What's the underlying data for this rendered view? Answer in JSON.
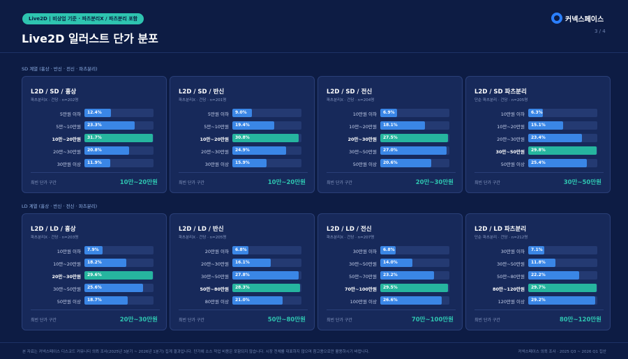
{
  "header": {
    "tag": "Live2D | 비상업 기준 · 파츠분리X / 파츠분리 포함",
    "title": "Live2D 일러스트 단가 분포",
    "logo_text": "커넥스페이스",
    "page": "3 / 4"
  },
  "sections": [
    {
      "label": "SD 계열 (흉상 · 반신 · 전신 · 파츠분리)"
    },
    {
      "label": "LD 계열 (흉상 · 반신 · 전신 · 파츠분리)"
    }
  ],
  "footer": {
    "note": "본 자료는 커넥스페이스 디스코드 커뮤니티 의뢰 조사(2025년 3분기 ~ 2026년 1분기) 집계 결과입니다. 단가에 소스 작업 비용은 포함되지 않습니다. 시장 전체를 대표하지 않으며 참고용으로만 활용하시기 바랍니다.",
    "source": "커넥스페이스 의뢰 조사 · 2025 Q3 ~ 2026 Q1 집산"
  },
  "colors": {
    "normal": "#3a86e6",
    "best": "#26b59f",
    "accent": "#2ec4b0"
  },
  "chart_data": [
    {
      "type": "bar",
      "title": "L2D / SD / 흉상",
      "subtitle": "파츠분리X · 건당 · n=202명",
      "categories": [
        "5만원 이하",
        "5만~10만원",
        "10만~20만원",
        "20만~30만원",
        "30만원 이상"
      ],
      "values": [
        12.4,
        23.3,
        31.7,
        20.8,
        11.9
      ],
      "labels": [
        "12.4%",
        "23.3%",
        "31.7%",
        "20.8%",
        "11.9%"
      ],
      "best_index": 2,
      "mode_label": "최빈 단가 구간",
      "mode_value": "10만~20만원",
      "xlim": [
        0,
        32
      ]
    },
    {
      "type": "bar",
      "title": "L2D / SD / 반신",
      "subtitle": "파츠분리X · 건당 · n=201명",
      "categories": [
        "5만원 이하",
        "5만~10만원",
        "10만~20만원",
        "20만~30만원",
        "30만원 이상"
      ],
      "values": [
        9.0,
        19.4,
        30.8,
        24.9,
        15.9
      ],
      "labels": [
        "9.0%",
        "19.4%",
        "30.8%",
        "24.9%",
        "15.9%"
      ],
      "best_index": 2,
      "mode_label": "최빈 단가 구간",
      "mode_value": "10만~20만원",
      "xlim": [
        0,
        32
      ]
    },
    {
      "type": "bar",
      "title": "L2D / SD / 전신",
      "subtitle": "파츠분리X · 건당 · n=204명",
      "categories": [
        "10만원 이하",
        "10만~20만원",
        "20만~30만원",
        "30만~50만원",
        "50만원 이상"
      ],
      "values": [
        6.9,
        18.1,
        27.5,
        27.0,
        20.6
      ],
      "labels": [
        "6.9%",
        "18.1%",
        "27.5%",
        "27.0%",
        "20.6%"
      ],
      "best_index": 2,
      "mode_label": "최빈 단가 구간",
      "mode_value": "20만~30만원",
      "xlim": [
        0,
        28
      ]
    },
    {
      "type": "bar",
      "title": "L2D / SD 파츠분리",
      "subtitle": "단순 파츠분리 · 건당 · n=205명",
      "categories": [
        "10만원 이하",
        "10만~20만원",
        "20만~30만원",
        "30만~50만원",
        "50만원 이상"
      ],
      "values": [
        6.3,
        15.1,
        23.4,
        29.8,
        25.4
      ],
      "labels": [
        "6.3%",
        "15.1%",
        "23.4%",
        "29.8%",
        "25.4%"
      ],
      "best_index": 3,
      "mode_label": "최빈 단가 구간",
      "mode_value": "30만~50만원",
      "xlim": [
        0,
        30
      ]
    },
    {
      "type": "bar",
      "title": "L2D / LD / 흉상",
      "subtitle": "파츠분리X · 건당 · n=203명",
      "categories": [
        "10만원 이하",
        "10만~20만원",
        "20만~30만원",
        "30만~50만원",
        "50만원 이상"
      ],
      "values": [
        7.9,
        18.2,
        29.6,
        25.6,
        18.7
      ],
      "labels": [
        "7.9%",
        "18.2%",
        "29.6%",
        "25.6%",
        "18.7%"
      ],
      "best_index": 2,
      "mode_label": "최빈 단가 구간",
      "mode_value": "20만~30만원",
      "xlim": [
        0,
        30
      ]
    },
    {
      "type": "bar",
      "title": "L2D / LD / 반신",
      "subtitle": "파츠분리X · 건당 · n=205명",
      "categories": [
        "20만원 이하",
        "20만~30만원",
        "30만~50만원",
        "50만~80만원",
        "80만원 이상"
      ],
      "values": [
        6.8,
        16.1,
        27.8,
        28.3,
        21.0
      ],
      "labels": [
        "6.8%",
        "16.1%",
        "27.8%",
        "28.3%",
        "21.0%"
      ],
      "best_index": 3,
      "mode_label": "최빈 단가 구간",
      "mode_value": "50만~80만원",
      "xlim": [
        0,
        29
      ]
    },
    {
      "type": "bar",
      "title": "L2D / LD / 전신",
      "subtitle": "파츠분리X · 건당 · n=207명",
      "categories": [
        "30만원 이하",
        "30만~50만원",
        "50만~70만원",
        "70만~100만원",
        "100만원 이상"
      ],
      "values": [
        6.8,
        14.0,
        23.2,
        29.5,
        26.6
      ],
      "labels": [
        "6.8%",
        "14.0%",
        "23.2%",
        "29.5%",
        "26.6%"
      ],
      "best_index": 3,
      "mode_label": "최빈 단가 구간",
      "mode_value": "70만~100만원",
      "xlim": [
        0,
        30
      ]
    },
    {
      "type": "bar",
      "title": "L2D / LD 파츠분리",
      "subtitle": "단순 파츠분리 · 건당 · n=212명",
      "categories": [
        "30만원 이하",
        "30만~50만원",
        "50만~80만원",
        "80만~120만원",
        "120만원 이상"
      ],
      "values": [
        7.1,
        11.8,
        22.2,
        29.7,
        29.2
      ],
      "labels": [
        "7.1%",
        "11.8%",
        "22.2%",
        "29.7%",
        "29.2%"
      ],
      "best_index": 3,
      "mode_label": "최빈 단가 구간",
      "mode_value": "80만~120만원",
      "xlim": [
        0,
        30
      ]
    }
  ]
}
